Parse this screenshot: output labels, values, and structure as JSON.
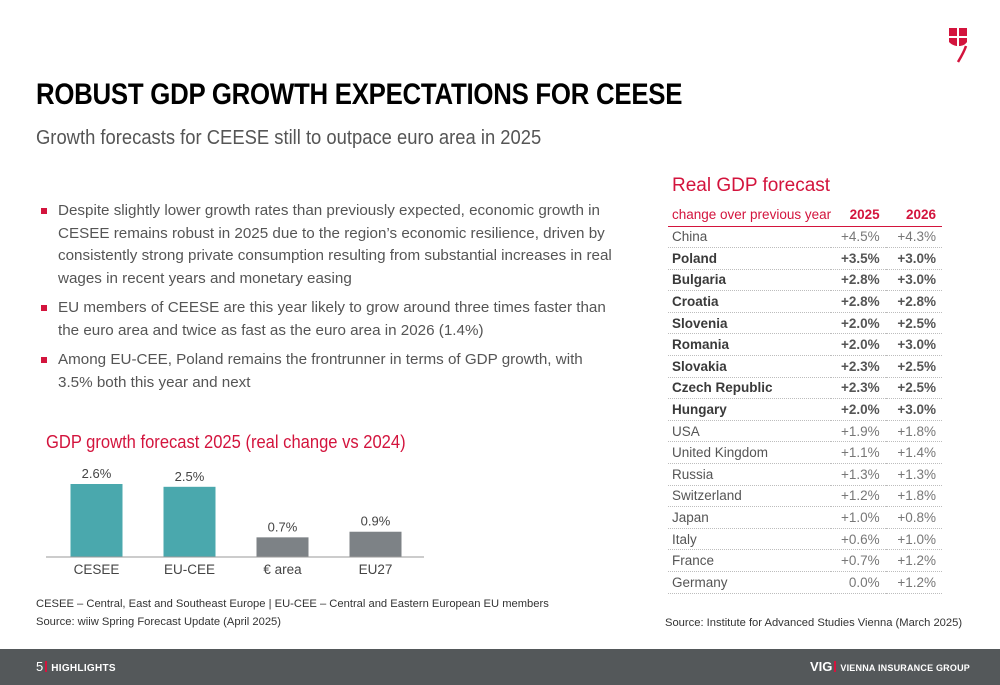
{
  "header": {
    "title": "ROBUST GDP GROWTH EXPECTATIONS FOR CEESE",
    "subtitle": "Growth forecasts for CEESE still to outpace euro area in 2025",
    "logo": "vig-shield-logo",
    "brand_color": "#d3143d"
  },
  "bullets": [
    "Despite slightly lower growth rates than previously expected, economic growth in CESEE remains robust in 2025 due to the region’s economic resilience, driven by consistently strong private consumption resulting from substantial increases in real wages in recent years and monetary easing",
    "EU members of CEESE are this year likely to grow around three times faster than the euro area and twice as fast as the euro area in 2026 (1.4%)",
    "Among EU-CEE, Poland remains the frontrunner in terms of GDP growth, with 3.5% both this year and next"
  ],
  "chart_data": {
    "type": "bar",
    "title": "GDP growth forecast 2025 (real change vs 2024)",
    "categories": [
      "CESEE",
      "EU-CEE",
      "€ area",
      "EU27"
    ],
    "values": [
      2.6,
      2.5,
      0.7,
      0.9
    ],
    "value_labels": [
      "2.6%",
      "2.5%",
      "0.7%",
      "0.9%"
    ],
    "colors": [
      "#4aa8ad",
      "#4aa8ad",
      "#7d8286",
      "#7d8286"
    ],
    "xlabel": "",
    "ylabel": "",
    "ylim": [
      0,
      2.6
    ],
    "grid": false,
    "legend": "none"
  },
  "footnotes": {
    "abbreviations": "CESEE – Central, East and Southeast Europe | EU-CEE – Central and Eastern European EU members",
    "source": "Source: wiiw Spring Forecast Update (April 2025)"
  },
  "table": {
    "title": "Real GDP forecast",
    "header": [
      "change over previous year",
      "2025",
      "2026"
    ],
    "rows": [
      {
        "country": "China",
        "y2025": "+4.5%",
        "y2026": "+4.3%",
        "bold": false
      },
      {
        "country": "Poland",
        "y2025": "+3.5%",
        "y2026": "+3.0%",
        "bold": true
      },
      {
        "country": "Bulgaria",
        "y2025": "+2.8%",
        "y2026": "+3.0%",
        "bold": true
      },
      {
        "country": "Croatia",
        "y2025": "+2.8%",
        "y2026": "+2.8%",
        "bold": true
      },
      {
        "country": "Slovenia",
        "y2025": "+2.0%",
        "y2026": "+2.5%",
        "bold": true
      },
      {
        "country": "Romania",
        "y2025": "+2.0%",
        "y2026": "+3.0%",
        "bold": true
      },
      {
        "country": "Slovakia",
        "y2025": "+2.3%",
        "y2026": "+2.5%",
        "bold": true
      },
      {
        "country": "Czech Republic",
        "y2025": "+2.3%",
        "y2026": "+2.5%",
        "bold": true
      },
      {
        "country": "Hungary",
        "y2025": "+2.0%",
        "y2026": "+3.0%",
        "bold": true
      },
      {
        "country": "USA",
        "y2025": "+1.9%",
        "y2026": "+1.8%",
        "bold": false
      },
      {
        "country": "United Kingdom",
        "y2025": "+1.1%",
        "y2026": "+1.4%",
        "bold": false
      },
      {
        "country": "Russia",
        "y2025": "+1.3%",
        "y2026": "+1.3%",
        "bold": false
      },
      {
        "country": "Switzerland",
        "y2025": "+1.2%",
        "y2026": "+1.8%",
        "bold": false
      },
      {
        "country": "Japan",
        "y2025": "+1.0%",
        "y2026": "+0.8%",
        "bold": false
      },
      {
        "country": "Italy",
        "y2025": "+0.6%",
        "y2026": "+1.0%",
        "bold": false
      },
      {
        "country": "France",
        "y2025": "+0.7%",
        "y2026": "+1.2%",
        "bold": false
      },
      {
        "country": "Germany",
        "y2025": "0.0%",
        "y2026": "+1.2%",
        "bold": false
      }
    ],
    "source": "Source: Institute for Advanced Studies Vienna (March 2025)"
  },
  "footer": {
    "page_number": "5",
    "section": "HIGHLIGHTS",
    "brand_abbr": "VIG",
    "brand_name": "VIENNA INSURANCE GROUP",
    "background": "#54585a"
  }
}
